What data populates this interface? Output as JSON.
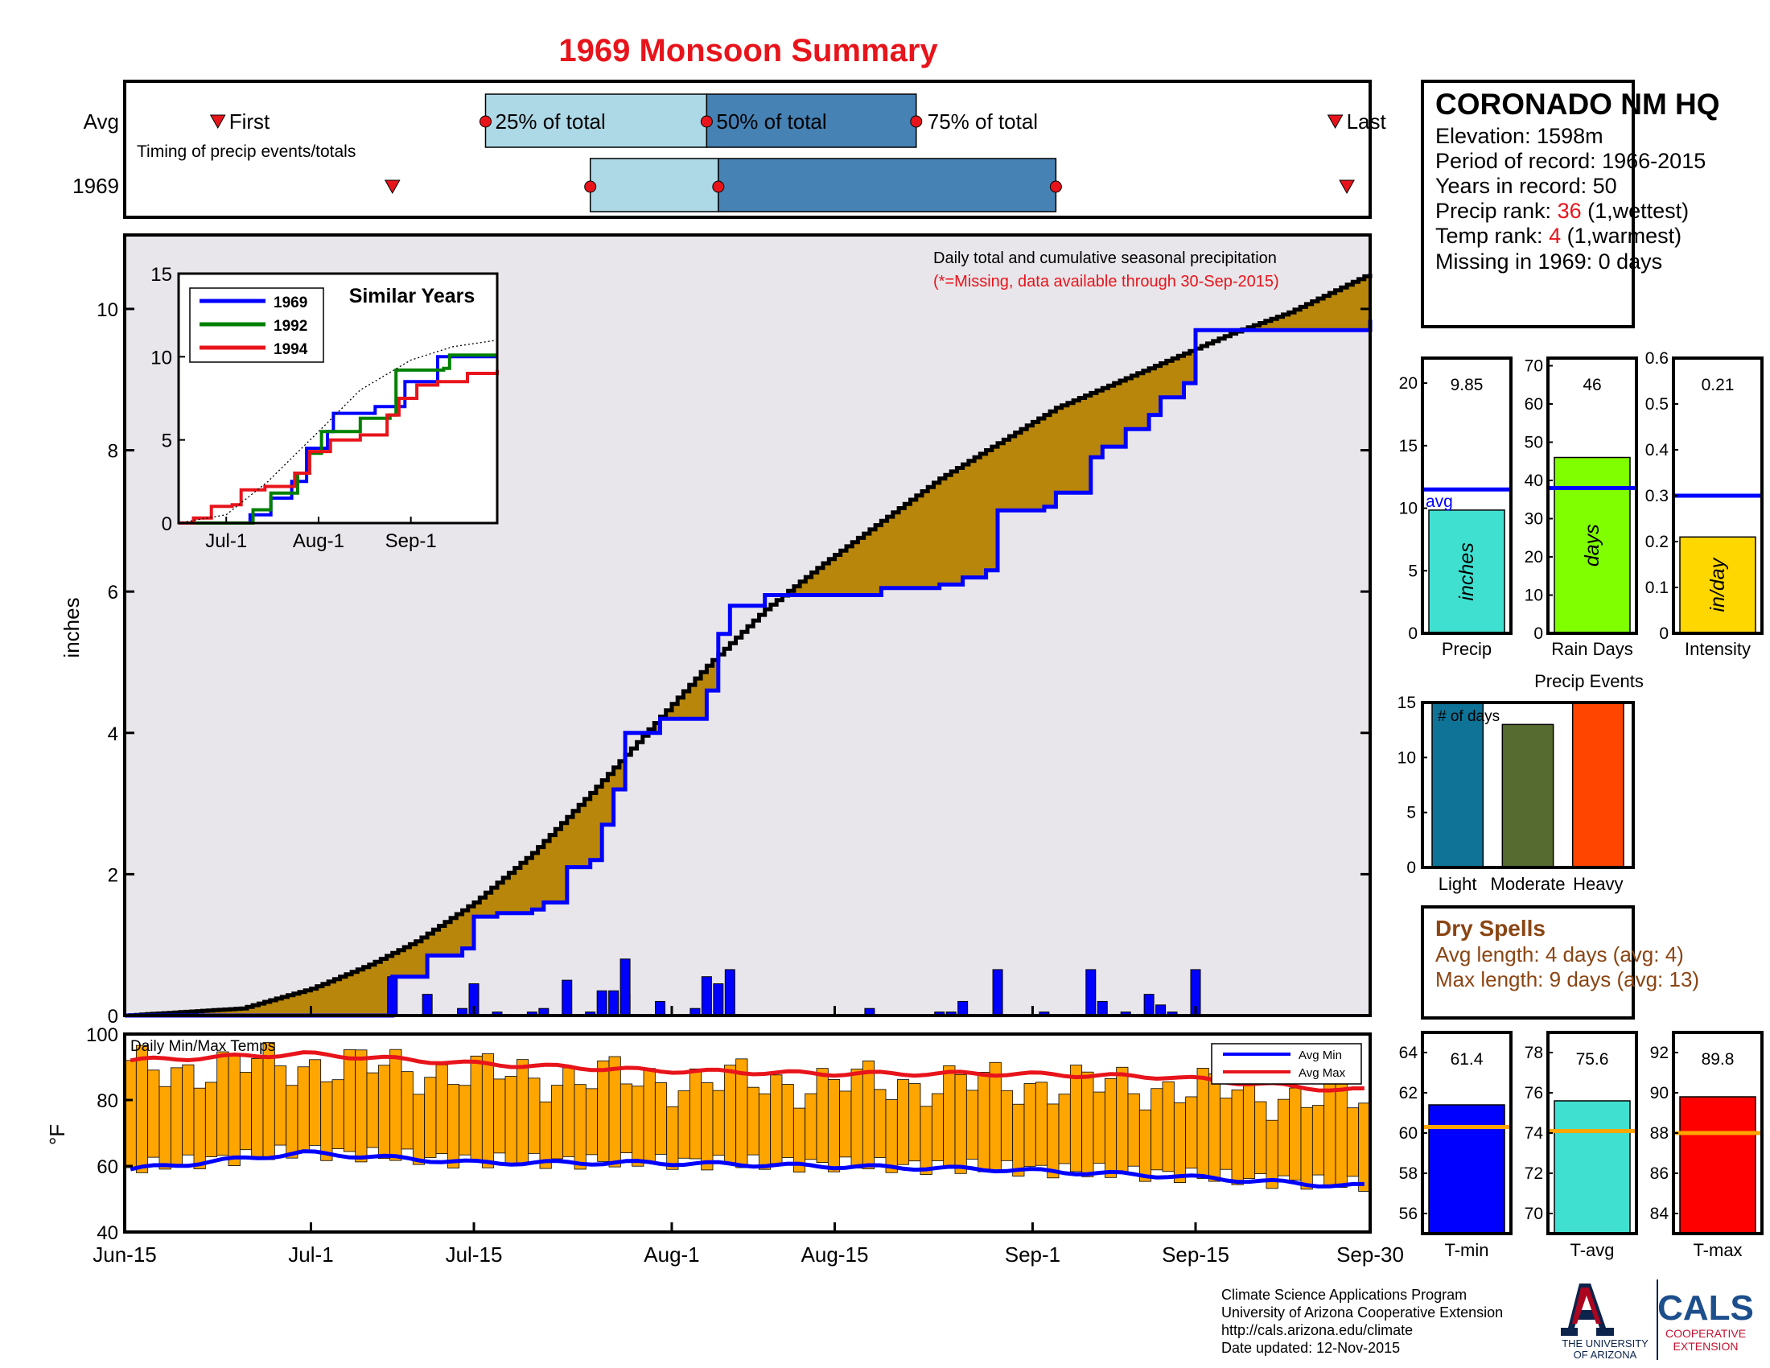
{
  "title": "1969 Monsoon Summary",
  "timing": {
    "caption": "Timing of precip events/totals",
    "row_avg": "Avg",
    "row_year": "1969",
    "first_label": "First",
    "last_label": "Last",
    "q25_label": "25% of total",
    "q50_label": "50% of total",
    "q75_label": "75% of total",
    "avg": {
      "first": "2015-06-23",
      "q25": "2015-07-16",
      "q50": "2015-08-04",
      "q75": "2015-08-22",
      "last": "2015-09-27"
    },
    "year": {
      "first": "2015-07-08",
      "q25": "2015-07-25",
      "q50": "2015-08-05",
      "q75": "2015-09-03",
      "last": "2015-09-28"
    },
    "colors": {
      "light": "#add8e6",
      "dark": "#4682b4",
      "marker": "#e8141b"
    }
  },
  "main_chart": {
    "note1": "Daily total and cumulative seasonal precipitation",
    "note2": "(*=Missing, data available through 30-Sep-2015)",
    "ylabel": "inches",
    "yticks": [
      "0",
      "2",
      "4",
      "6",
      "8",
      "10"
    ],
    "xticks": [
      "Jun-15",
      "Jul-1",
      "Jul-15",
      "Aug-1",
      "Aug-15",
      "Sep-1",
      "Sep-15",
      "Sep-30"
    ]
  },
  "chart_data": [
    {
      "type": "area",
      "title": "Daily total and cumulative seasonal precipitation",
      "ylabel": "inches",
      "ylim": [
        0,
        10.5
      ],
      "x_range": [
        "2015-06-15",
        "2015-09-30"
      ],
      "series": [
        {
          "name": "Avg",
          "kind": "cumulative",
          "color": "#b8860b",
          "points": [
            [
              "2015-06-15",
              0
            ],
            [
              "2015-06-25",
              0.1
            ],
            [
              "2015-07-01",
              0.38
            ],
            [
              "2015-07-06",
              0.72
            ],
            [
              "2015-07-10",
              1.05
            ],
            [
              "2015-07-15",
              1.6
            ],
            [
              "2015-07-20",
              2.3
            ],
            [
              "2015-07-25",
              3.15
            ],
            [
              "2015-07-30",
              4.05
            ],
            [
              "2015-08-04",
              4.95
            ],
            [
              "2015-08-09",
              5.75
            ],
            [
              "2015-08-14",
              6.4
            ],
            [
              "2015-08-19",
              7.0
            ],
            [
              "2015-08-24",
              7.6
            ],
            [
              "2015-08-29",
              8.1
            ],
            [
              "2015-09-03",
              8.6
            ],
            [
              "2015-09-08",
              8.95
            ],
            [
              "2015-09-13",
              9.3
            ],
            [
              "2015-09-18",
              9.65
            ],
            [
              "2015-09-23",
              9.95
            ],
            [
              "2015-09-30",
              10.5
            ]
          ]
        },
        {
          "name": "1969",
          "kind": "cumulative",
          "color": "#0000ff",
          "points": [
            [
              "2015-06-15",
              0
            ],
            [
              "2015-07-08",
              0
            ],
            [
              "2015-07-08",
              0.55
            ],
            [
              "2015-07-11",
              0.55
            ],
            [
              "2015-07-11",
              0.85
            ],
            [
              "2015-07-14",
              0.85
            ],
            [
              "2015-07-14",
              0.95
            ],
            [
              "2015-07-15",
              0.95
            ],
            [
              "2015-07-15",
              1.4
            ],
            [
              "2015-07-17",
              1.45
            ],
            [
              "2015-07-20",
              1.5
            ],
            [
              "2015-07-21",
              1.6
            ],
            [
              "2015-07-23",
              2.1
            ],
            [
              "2015-07-25",
              2.2
            ],
            [
              "2015-07-26",
              2.7
            ],
            [
              "2015-07-27",
              3.2
            ],
            [
              "2015-07-28",
              3.2
            ],
            [
              "2015-07-28",
              4.0
            ],
            [
              "2015-07-31",
              4.2
            ],
            [
              "2015-08-03",
              4.2
            ],
            [
              "2015-08-04",
              4.6
            ],
            [
              "2015-08-05",
              5.4
            ],
            [
              "2015-08-06",
              5.8
            ],
            [
              "2015-08-09",
              5.95
            ],
            [
              "2015-08-18",
              5.95
            ],
            [
              "2015-08-19",
              6.05
            ],
            [
              "2015-08-24",
              6.1
            ],
            [
              "2015-08-26",
              6.2
            ],
            [
              "2015-08-28",
              6.3
            ],
            [
              "2015-08-29",
              7.15
            ],
            [
              "2015-09-02",
              7.2
            ],
            [
              "2015-09-03",
              7.4
            ],
            [
              "2015-09-06",
              7.9
            ],
            [
              "2015-09-07",
              8.05
            ],
            [
              "2015-09-09",
              8.3
            ],
            [
              "2015-09-11",
              8.5
            ],
            [
              "2015-09-12",
              8.75
            ],
            [
              "2015-09-14",
              8.95
            ],
            [
              "2015-09-15",
              9.7
            ],
            [
              "2015-09-30",
              9.85
            ]
          ]
        }
      ],
      "daily_bars": [
        [
          "2015-07-08",
          0.55
        ],
        [
          "2015-07-11",
          0.3
        ],
        [
          "2015-07-14",
          0.1
        ],
        [
          "2015-07-15",
          0.45
        ],
        [
          "2015-07-17",
          0.05
        ],
        [
          "2015-07-20",
          0.05
        ],
        [
          "2015-07-21",
          0.1
        ],
        [
          "2015-07-23",
          0.5
        ],
        [
          "2015-07-25",
          0.05
        ],
        [
          "2015-07-26",
          0.35
        ],
        [
          "2015-07-27",
          0.35
        ],
        [
          "2015-07-28",
          0.3
        ],
        [
          "2015-07-28",
          0.8
        ],
        [
          "2015-07-31",
          0.2
        ],
        [
          "2015-08-03",
          0.1
        ],
        [
          "2015-08-04",
          0.55
        ],
        [
          "2015-08-05",
          0.45
        ],
        [
          "2015-08-06",
          0.65
        ],
        [
          "2015-08-18",
          0.1
        ],
        [
          "2015-08-24",
          0.05
        ],
        [
          "2015-08-25",
          0.05
        ],
        [
          "2015-08-26",
          0.2
        ],
        [
          "2015-08-29",
          0.65
        ],
        [
          "2015-09-02",
          0.05
        ],
        [
          "2015-09-06",
          0.65
        ],
        [
          "2015-09-07",
          0.2
        ],
        [
          "2015-09-09",
          0.05
        ],
        [
          "2015-09-11",
          0.3
        ],
        [
          "2015-09-12",
          0.15
        ],
        [
          "2015-09-13",
          0.05
        ],
        [
          "2015-09-15",
          0.65
        ]
      ]
    },
    {
      "type": "line",
      "title": "Similar Years",
      "ylim": [
        0,
        15
      ],
      "yticks": [
        "0",
        "5",
        "10",
        "15"
      ],
      "xticks": [
        "Jul-1",
        "Aug-1",
        "Sep-1"
      ],
      "legend_placement": "top-left",
      "series": [
        {
          "name": "1969",
          "color": "#0000ff",
          "points": [
            [
              "2015-06-15",
              0
            ],
            [
              "2015-07-08",
              0
            ],
            [
              "2015-07-09",
              0.5
            ],
            [
              "2015-07-16",
              1.5
            ],
            [
              "2015-07-23",
              2.5
            ],
            [
              "2015-07-28",
              4.5
            ],
            [
              "2015-08-04",
              5.5
            ],
            [
              "2015-08-06",
              6.6
            ],
            [
              "2015-08-20",
              7.0
            ],
            [
              "2015-08-30",
              8.5
            ],
            [
              "2015-09-10",
              10.0
            ],
            [
              "2015-09-30",
              10.0
            ]
          ]
        },
        {
          "name": "1992",
          "color": "#008000",
          "points": [
            [
              "2015-06-15",
              0
            ],
            [
              "2015-07-08",
              0
            ],
            [
              "2015-07-10",
              0.8
            ],
            [
              "2015-07-16",
              1.8
            ],
            [
              "2015-07-25",
              3.0
            ],
            [
              "2015-07-29",
              4.2
            ],
            [
              "2015-08-02",
              5.5
            ],
            [
              "2015-08-15",
              6.3
            ],
            [
              "2015-08-25",
              6.5
            ],
            [
              "2015-08-27",
              9.2
            ],
            [
              "2015-09-12",
              9.3
            ],
            [
              "2015-09-14",
              10.1
            ],
            [
              "2015-09-30",
              10.1
            ]
          ]
        },
        {
          "name": "1994",
          "color": "#e8141b",
          "points": [
            [
              "2015-06-15",
              0
            ],
            [
              "2015-06-20",
              0.3
            ],
            [
              "2015-06-26",
              1.0
            ],
            [
              "2015-07-03",
              1.1
            ],
            [
              "2015-07-06",
              2.0
            ],
            [
              "2015-07-14",
              2.2
            ],
            [
              "2015-07-24",
              3.0
            ],
            [
              "2015-07-29",
              4.3
            ],
            [
              "2015-08-05",
              5.0
            ],
            [
              "2015-08-15",
              5.3
            ],
            [
              "2015-08-24",
              6.5
            ],
            [
              "2015-08-28",
              7.5
            ],
            [
              "2015-09-03",
              8.3
            ],
            [
              "2015-09-10",
              8.5
            ],
            [
              "2015-09-20",
              9.0
            ],
            [
              "2015-09-30",
              9.2
            ]
          ]
        },
        {
          "name": "",
          "color": "#000000",
          "dotted": true,
          "points": [
            [
              "2015-06-15",
              0
            ],
            [
              "2015-07-01",
              0.5
            ],
            [
              "2015-07-15",
              2.5
            ],
            [
              "2015-08-01",
              5.5
            ],
            [
              "2015-08-15",
              8.0
            ],
            [
              "2015-09-01",
              9.8
            ],
            [
              "2015-09-15",
              10.6
            ],
            [
              "2015-09-30",
              11.0
            ]
          ]
        }
      ]
    },
    {
      "type": "bar",
      "title": "Daily Min/Max Temps",
      "ylabel": "°F",
      "ylim": [
        40,
        100
      ],
      "yticks": [
        "40",
        "60",
        "80",
        "100"
      ],
      "legend": [
        "Avg Min",
        "Avg Max"
      ],
      "avg_max": [
        [
          0,
          92
        ],
        [
          15,
          94
        ],
        [
          30,
          91
        ],
        [
          45,
          89
        ],
        [
          60,
          88
        ],
        [
          75,
          88
        ],
        [
          90,
          87
        ],
        [
          105,
          83
        ]
      ],
      "avg_min": [
        [
          0,
          59
        ],
        [
          15,
          64
        ],
        [
          30,
          61
        ],
        [
          45,
          61
        ],
        [
          60,
          60
        ],
        [
          75,
          59
        ],
        [
          90,
          57
        ],
        [
          105,
          54
        ]
      ],
      "colors": {
        "bars": "#ffa500",
        "min": "#0000ff",
        "max": "#e8141b"
      }
    },
    {
      "type": "bar",
      "panels": [
        {
          "label": "Precip",
          "unit": "inches",
          "value": 9.85,
          "value_label": "9.85",
          "avg": 11.5,
          "ylim": [
            0,
            22
          ],
          "yticks": [
            "0",
            "5",
            "10",
            "15",
            "20"
          ],
          "color": "#40e0d0",
          "avg_label": "avg"
        },
        {
          "label": "Rain Days",
          "unit": "days",
          "value": 46,
          "value_label": "46",
          "avg": 38,
          "ylim": [
            0,
            72
          ],
          "yticks": [
            "0",
            "10",
            "20",
            "30",
            "40",
            "50",
            "60",
            "70"
          ],
          "color": "#7fff00"
        },
        {
          "label": "Intensity",
          "unit": "in/day",
          "value": 0.21,
          "value_label": "0.21",
          "avg": 0.3,
          "ylim": [
            0,
            0.6
          ],
          "yticks": [
            "0",
            "0.1",
            "0.2",
            "0.3",
            "0.4",
            "0.5",
            "0.6"
          ],
          "color": "#ffd700"
        }
      ]
    },
    {
      "type": "bar",
      "title": "Precip Events",
      "annotation": "# of days",
      "categories": [
        "Light",
        "Moderate",
        "Heavy"
      ],
      "values": [
        15,
        13,
        15
      ],
      "colors": [
        "#0e7396",
        "#556b2f",
        "#ff4500"
      ],
      "ylim": [
        0,
        15
      ],
      "yticks": [
        "0",
        "5",
        "10",
        "15"
      ]
    },
    {
      "type": "bar",
      "panels": [
        {
          "label": "T-min",
          "value": 61.4,
          "value_label": "61.4",
          "avg": 60.3,
          "ylim": [
            55,
            65
          ],
          "yticks": [
            "56",
            "58",
            "60",
            "62",
            "64"
          ],
          "color": "#0000ff"
        },
        {
          "label": "T-avg",
          "value": 75.6,
          "value_label": "75.6",
          "avg": 74.1,
          "ylim": [
            69,
            79
          ],
          "yticks": [
            "70",
            "72",
            "74",
            "76",
            "78"
          ],
          "color": "#40e0d0"
        },
        {
          "label": "T-max",
          "value": 89.8,
          "value_label": "89.8",
          "avg": 88.0,
          "ylim": [
            83,
            93
          ],
          "yticks": [
            "84",
            "86",
            "88",
            "90",
            "92"
          ],
          "color": "#ff0000"
        }
      ]
    }
  ],
  "station": {
    "name": "CORONADO NM HQ",
    "elevation": "Elevation: 1598m",
    "period": "Period of record: 1966-2015",
    "years": "Years in record: 50",
    "precip_rank_pre": "Precip rank: ",
    "precip_rank": "36",
    "precip_rank_post": " (1,wettest)",
    "temp_rank_pre": "Temp rank: ",
    "temp_rank": "4",
    "temp_rank_post": " (1,warmest)",
    "missing": "Missing in 1969: 0 days"
  },
  "dry_spells": {
    "title": "Dry Spells",
    "avg_length": "Avg length: 4 days (avg: 4)",
    "max_length": "Max length: 9 days (avg: 13)"
  },
  "footer": {
    "line1": "Climate Science Applications Program",
    "line2": "University of Arizona Cooperative Extension",
    "line3": "http://cals.arizona.edu/climate",
    "line4": " Date updated: 12-Nov-2015",
    "ua_logo_text": "THE UNIVERSITY",
    "ua_logo_text2": "OF ARIZONA",
    "cals_logo": "CALS",
    "cals_sub1": "COOPERATIVE",
    "cals_sub2": "EXTENSION"
  }
}
